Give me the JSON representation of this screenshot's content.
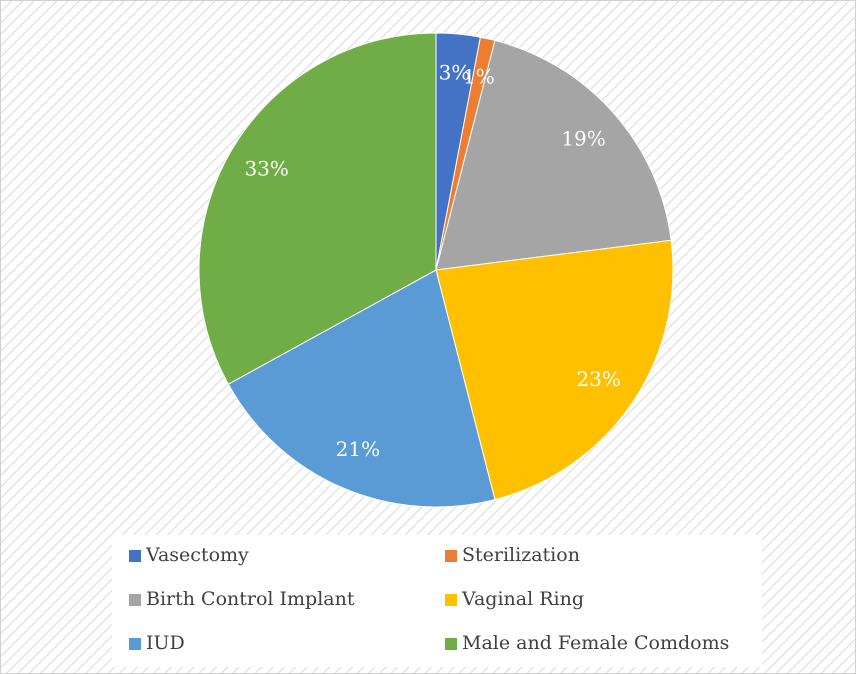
{
  "chart_data": {
    "type": "pie",
    "categories": [
      "Vasectomy",
      "Sterilization",
      "Birth Control Implant",
      "Vaginal Ring",
      "IUD",
      "Male and Female Comdoms"
    ],
    "values": [
      3,
      1,
      19,
      23,
      21,
      33
    ],
    "value_labels": [
      "3%",
      "1%",
      "19%",
      "23%",
      "21%",
      "33%"
    ],
    "colors": [
      "#4472c4",
      "#ed7d31",
      "#a5a5a5",
      "#ffc000",
      "#5b9bd5",
      "#70ad47"
    ],
    "legend": "bottom"
  }
}
